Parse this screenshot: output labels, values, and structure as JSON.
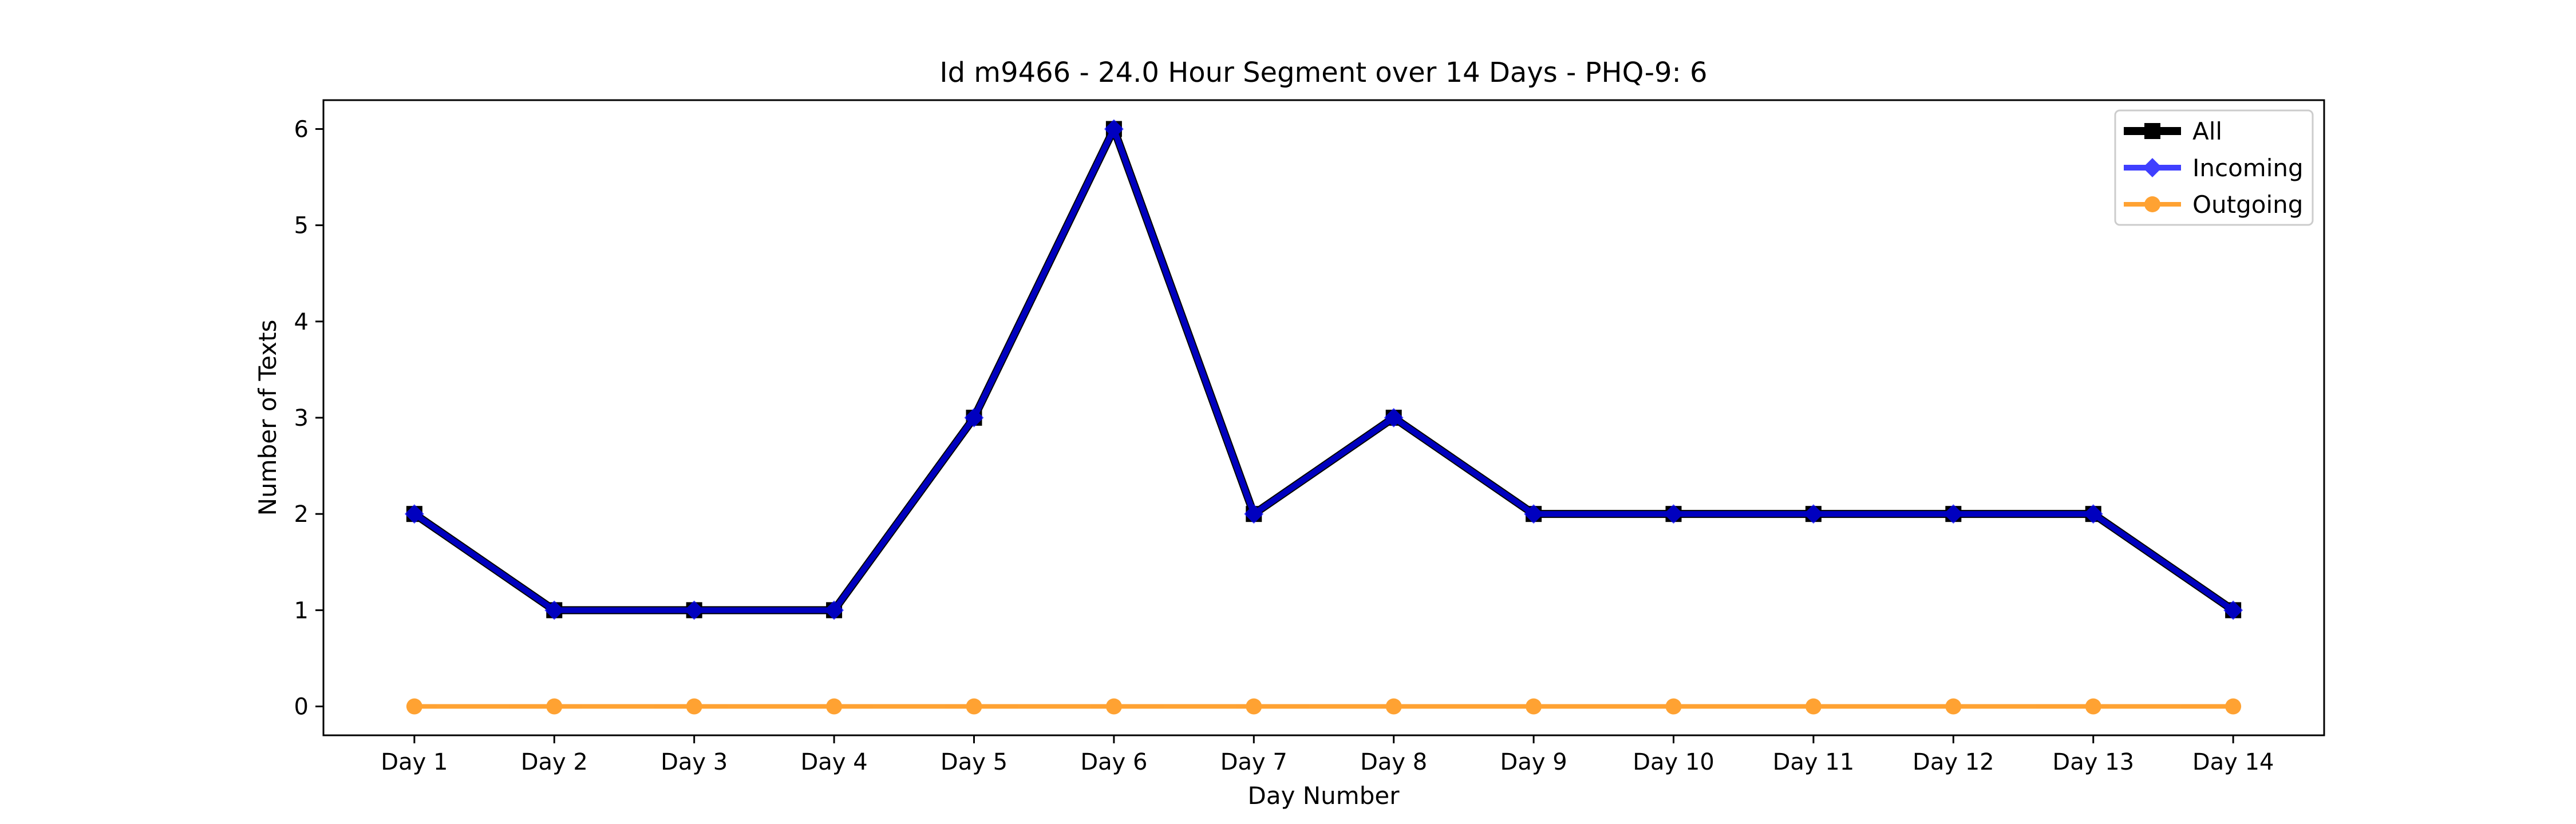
{
  "chart_data": {
    "type": "line",
    "title": "Id m9466 - 24.0 Hour Segment over 14 Days - PHQ-9: 6",
    "xlabel": "Day Number",
    "ylabel": "Number of Texts",
    "categories": [
      "Day 1",
      "Day 2",
      "Day 3",
      "Day 4",
      "Day 5",
      "Day 6",
      "Day 7",
      "Day 8",
      "Day 9",
      "Day 10",
      "Day 11",
      "Day 12",
      "Day 13",
      "Day 14"
    ],
    "ylim": [
      -0.3,
      6.3
    ],
    "yticks": [
      0,
      1,
      2,
      3,
      4,
      5,
      6
    ],
    "grid": false,
    "legend_position": "top-right",
    "series": [
      {
        "name": "All",
        "color": "#000000",
        "marker": "square",
        "values": [
          2,
          1,
          1,
          1,
          3,
          6,
          2,
          3,
          2,
          2,
          2,
          2,
          2,
          1
        ]
      },
      {
        "name": "Incoming",
        "color": "#0000ff",
        "marker": "diamond",
        "values": [
          2,
          1,
          1,
          1,
          3,
          6,
          2,
          3,
          2,
          2,
          2,
          2,
          2,
          1
        ]
      },
      {
        "name": "Outgoing",
        "color": "#ff8c00",
        "marker": "circle",
        "values": [
          0,
          0,
          0,
          0,
          0,
          0,
          0,
          0,
          0,
          0,
          0,
          0,
          0,
          0
        ]
      }
    ]
  }
}
